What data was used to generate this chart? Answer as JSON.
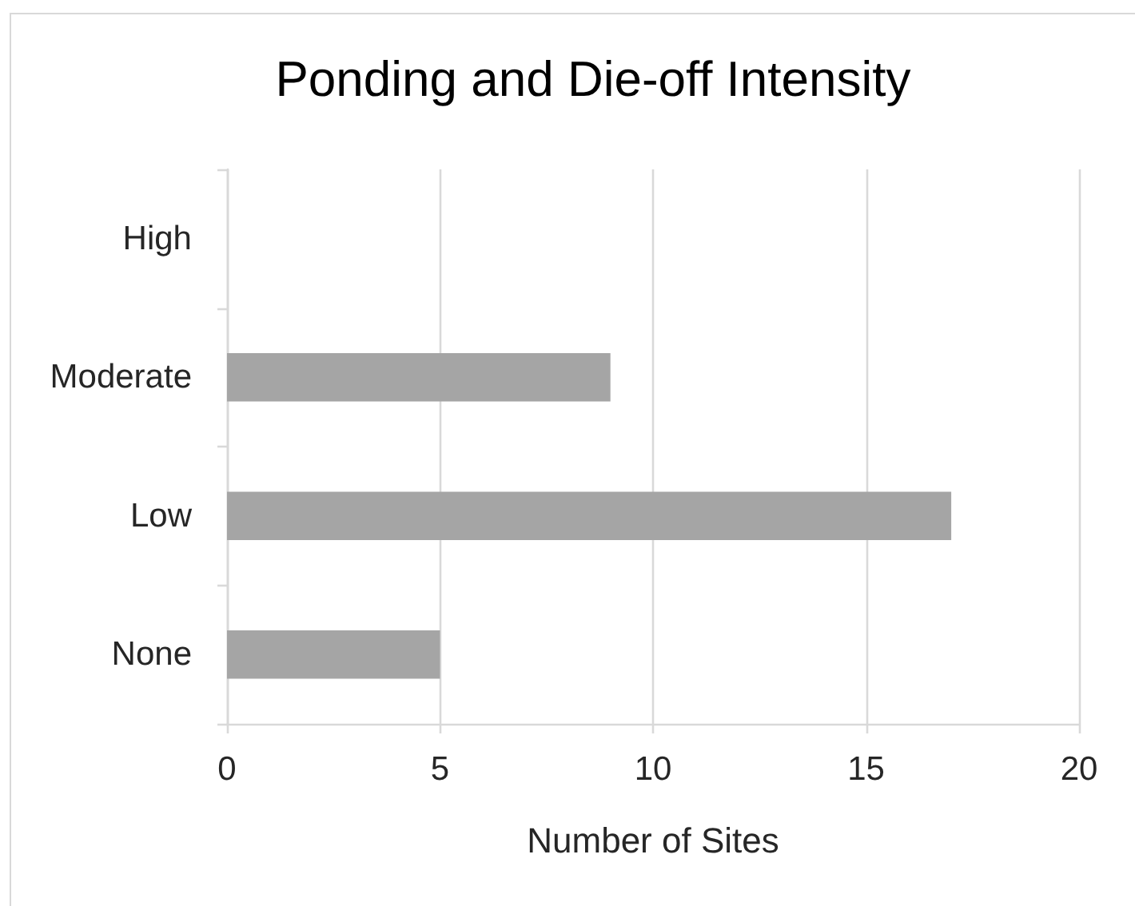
{
  "chart_data": {
    "type": "bar",
    "orientation": "horizontal",
    "title": "Ponding and Die-off Intensity",
    "xlabel": "Number of Sites",
    "categories": [
      "High",
      "Moderate",
      "Low",
      "None"
    ],
    "values": [
      0,
      9,
      17,
      5
    ],
    "color": "#a5a5a5",
    "xlim": [
      0,
      20
    ],
    "xticks": [
      0,
      5,
      10,
      15,
      20
    ],
    "grid": "x"
  }
}
